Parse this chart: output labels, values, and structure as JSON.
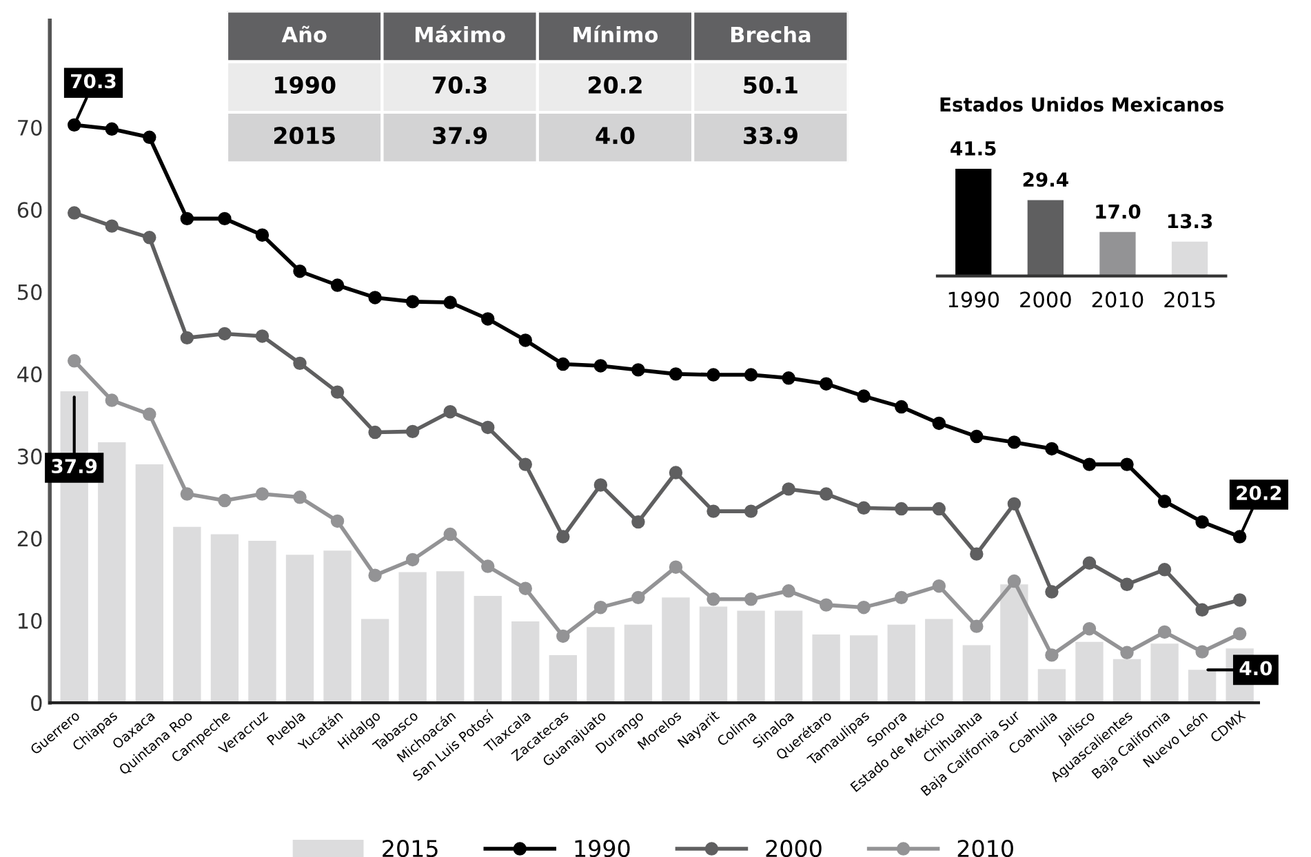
{
  "chart_data": [
    {
      "type": "bar",
      "categories": [
        "Guerrero",
        "Chiapas",
        "Oaxaca",
        "Quintana Roo",
        "Campeche",
        "Veracruz",
        "Puebla",
        "Yucatán",
        "Hidalgo",
        "Tabasco",
        "Michoacán",
        "San Luis Potosí",
        "Tlaxcala",
        "Zacatecas",
        "Guanajuato",
        "Durango",
        "Morelos",
        "Nayarit",
        "Colima",
        "Sinaloa",
        "Querétaro",
        "Tamaulipas",
        "Sonora",
        "Estado de México",
        "Chihuahua",
        "Baja California Sur",
        "Coahuila",
        "Jalisco",
        "Aguascalientes",
        "Baja California",
        "Nuevo León",
        "CDMX"
      ],
      "series": [
        {
          "name": "2015",
          "type": "bar",
          "color": "#dcdcdd",
          "values": [
            37.9,
            31.7,
            29.0,
            21.4,
            20.5,
            19.7,
            18.0,
            18.5,
            10.2,
            15.9,
            16.0,
            13.0,
            9.9,
            5.8,
            9.2,
            9.5,
            12.8,
            11.7,
            11.2,
            11.2,
            8.3,
            8.2,
            9.5,
            10.2,
            7.0,
            14.4,
            4.1,
            7.4,
            5.3,
            7.2,
            4.0,
            6.6
          ]
        },
        {
          "name": "1990",
          "type": "line",
          "color": "#000000",
          "values": [
            70.3,
            69.8,
            68.8,
            58.9,
            58.9,
            56.9,
            52.5,
            50.8,
            49.3,
            48.8,
            48.7,
            46.7,
            44.1,
            41.2,
            41.0,
            40.5,
            40.0,
            39.9,
            39.9,
            39.5,
            38.8,
            37.3,
            36.0,
            34.0,
            32.4,
            31.7,
            30.9,
            29.0,
            29.0,
            24.5,
            22.0,
            20.2
          ]
        },
        {
          "name": "2000",
          "type": "line",
          "color": "#5f5f60",
          "values": [
            59.6,
            58.0,
            56.6,
            44.4,
            44.9,
            44.6,
            41.3,
            37.8,
            32.9,
            33.0,
            35.4,
            33.5,
            29.0,
            20.2,
            26.5,
            22.0,
            28.0,
            23.3,
            23.3,
            26.0,
            25.4,
            23.7,
            23.6,
            23.6,
            18.1,
            24.2,
            13.5,
            17.0,
            14.4,
            16.2,
            11.3,
            12.5
          ]
        },
        {
          "name": "2010",
          "type": "line",
          "color": "#939395",
          "values": [
            41.6,
            36.8,
            35.1,
            25.4,
            24.6,
            25.4,
            25.0,
            22.1,
            15.5,
            17.4,
            20.5,
            16.6,
            13.9,
            8.1,
            11.6,
            12.8,
            16.5,
            12.6,
            12.6,
            13.6,
            11.9,
            11.6,
            12.8,
            14.2,
            9.3,
            14.8,
            5.8,
            9.0,
            6.1,
            8.6,
            6.2,
            8.4
          ]
        }
      ],
      "ylim": [
        0,
        83
      ],
      "yticks": [
        0,
        10,
        20,
        30,
        40,
        50,
        60,
        70
      ],
      "marker": "circle",
      "line_style": "solid",
      "grid": false,
      "legend": "bottom",
      "annotations": [
        {
          "text": "70.3",
          "x": "Guerrero",
          "y": 70.3
        },
        {
          "text": "37.9",
          "x": "Guerrero",
          "y": 37.9
        },
        {
          "text": "20.2",
          "x": "CDMX",
          "y": 20.2
        },
        {
          "text": "4.0",
          "x": "Nuevo León",
          "y": 4.0
        }
      ]
    },
    {
      "type": "other",
      "categories": [
        "Año",
        "Máximo",
        "Mínimo",
        "Brecha"
      ],
      "y_categories": [
        "1990",
        "2015"
      ],
      "cell_labels": [
        [
          "70.3",
          "20.2",
          "50.1"
        ],
        [
          "37.9",
          "4.0",
          "33.9"
        ]
      ]
    },
    {
      "type": "bar",
      "title": "Estados Unidos Mexicanos",
      "categories": [
        "1990",
        "2000",
        "2010",
        "2015"
      ],
      "values": [
        41.5,
        29.4,
        17.0,
        13.3
      ],
      "colors": [
        "#000000",
        "#5f5f60",
        "#939395",
        "#dcdcdd"
      ],
      "value_labels": [
        "41.5",
        "29.4",
        "17.0",
        "13.3"
      ]
    }
  ]
}
